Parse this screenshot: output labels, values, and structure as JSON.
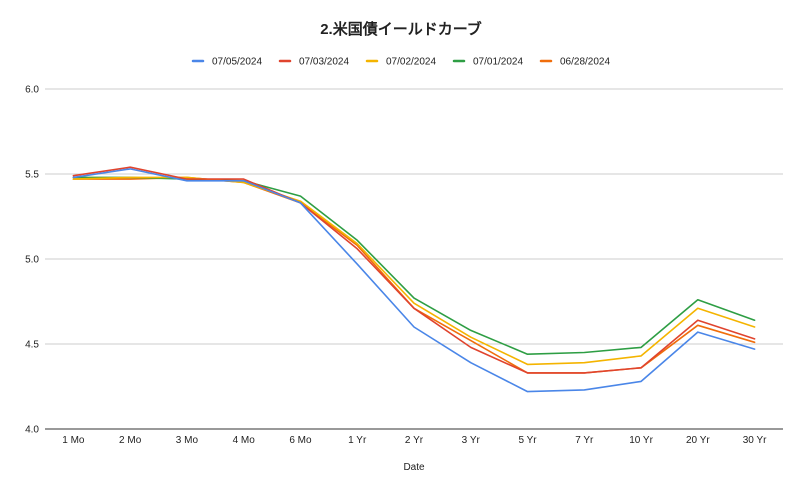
{
  "chart_data": {
    "type": "line",
    "title": "2.米国債イールドカーブ",
    "xlabel": "Date",
    "ylabel": "",
    "ylim": [
      4.0,
      6.0
    ],
    "yticks": [
      "4.0",
      "4.5",
      "5.0",
      "5.5",
      "6.0"
    ],
    "grid": true,
    "legend_position": "top",
    "categories": [
      "1 Mo",
      "2 Mo",
      "3 Mo",
      "4 Mo",
      "6 Mo",
      "1 Yr",
      "2 Yr",
      "3 Yr",
      "5 Yr",
      "7 Yr",
      "10 Yr",
      "20 Yr",
      "30 Yr"
    ],
    "series": [
      {
        "name": "07/05/2024",
        "color": "#4a86e8",
        "values": [
          5.48,
          5.53,
          5.46,
          5.46,
          5.33,
          4.97,
          4.6,
          4.39,
          4.22,
          4.23,
          4.28,
          4.57,
          4.47
        ]
      },
      {
        "name": "07/03/2024",
        "color": "#e0442e",
        "values": [
          5.49,
          5.54,
          5.47,
          5.47,
          5.33,
          5.06,
          4.71,
          4.48,
          4.33,
          4.33,
          4.36,
          4.64,
          4.53
        ]
      },
      {
        "name": "07/02/2024",
        "color": "#f4b400",
        "values": [
          5.47,
          5.48,
          5.48,
          5.45,
          5.34,
          5.09,
          4.74,
          4.54,
          4.38,
          4.39,
          4.43,
          4.71,
          4.6
        ]
      },
      {
        "name": "07/01/2024",
        "color": "#2e9e44",
        "values": [
          5.48,
          5.48,
          5.47,
          5.46,
          5.37,
          5.11,
          4.77,
          4.58,
          4.44,
          4.45,
          4.48,
          4.76,
          4.64
        ]
      },
      {
        "name": "06/28/2024",
        "color": "#f06d0b",
        "values": [
          5.47,
          5.47,
          5.48,
          5.45,
          5.33,
          5.08,
          4.71,
          4.52,
          4.33,
          4.33,
          4.36,
          4.61,
          4.51
        ]
      }
    ]
  }
}
